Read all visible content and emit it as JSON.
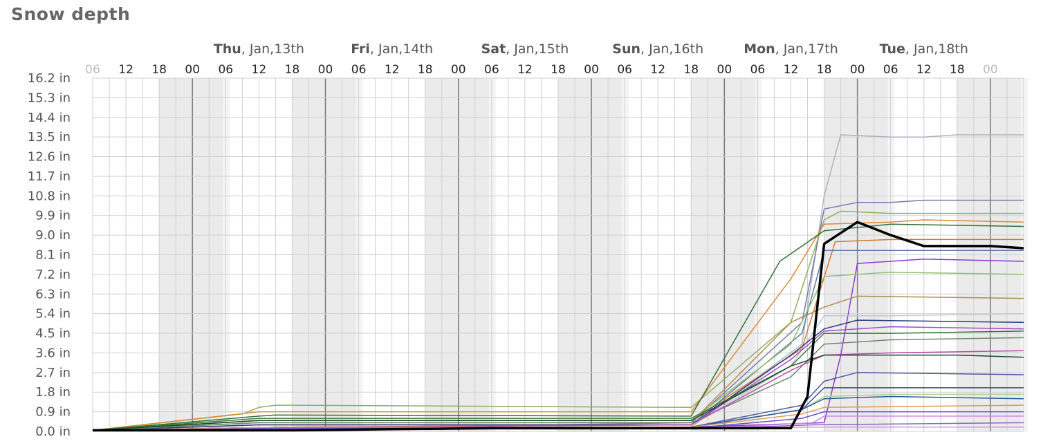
{
  "chart_data": {
    "type": "line",
    "title": "Snow depth",
    "xlabel": "",
    "ylabel": "",
    "unit": "in",
    "ylim": [
      0,
      16.2
    ],
    "y_ticks": [
      "0.0 in",
      "0.9 in",
      "1.8 in",
      "2.7 in",
      "3.6 in",
      "4.5 in",
      "5.4 in",
      "6.3 in",
      "7.2 in",
      "8.1 in",
      "9.0 in",
      "9.9 in",
      "10.8 in",
      "11.7 in",
      "12.6 in",
      "13.5 in",
      "14.4 in",
      "15.3 in",
      "16.2 in"
    ],
    "x_ticks": [
      "06",
      "12",
      "18",
      "00",
      "06",
      "12",
      "18",
      "00",
      "06",
      "12",
      "18",
      "00",
      "06",
      "12",
      "18",
      "00",
      "06",
      "12",
      "18",
      "00",
      "06",
      "12",
      "18",
      "00",
      "06",
      "12",
      "18",
      "00"
    ],
    "day_labels": [
      {
        "day": "Thu",
        "date": ", Jan,13th"
      },
      {
        "day": "Fri",
        "date": ", Jan,14th"
      },
      {
        "day": "Sat",
        "date": ", Jan,15th"
      },
      {
        "day": "Sun",
        "date": ", Jan,16th"
      },
      {
        "day": "Mon",
        "date": ", Jan,17th"
      },
      {
        "day": "Tue",
        "date": ", Jan,18th"
      }
    ],
    "x_hours_from_start_note": "x values are forecast hours starting at Wed 06",
    "grid": true,
    "series": [
      {
        "color": "#000000",
        "width": 3.5,
        "x": [
          0,
          36,
          54,
          72,
          108,
          126,
          129,
          132,
          138,
          144,
          150,
          156,
          162,
          168
        ],
        "y": [
          0.05,
          0.05,
          0.1,
          0.15,
          0.15,
          0.15,
          1.6,
          8.6,
          9.6,
          9.0,
          8.5,
          8.5,
          8.5,
          8.4
        ]
      },
      {
        "color": "#a8b4c0",
        "width": 1.5,
        "x": [
          0,
          30,
          108,
          128,
          132,
          135,
          144,
          150,
          156,
          168
        ],
        "y": [
          0.05,
          0.1,
          0.2,
          4.0,
          10.8,
          13.6,
          13.5,
          13.5,
          13.6,
          13.6
        ]
      },
      {
        "color": "#7777aa",
        "width": 1.5,
        "x": [
          0,
          30,
          108,
          128,
          132,
          138,
          144,
          150,
          168
        ],
        "y": [
          0.05,
          0.1,
          0.4,
          5.0,
          10.2,
          10.5,
          10.5,
          10.6,
          10.6
        ]
      },
      {
        "color": "#88b060",
        "width": 1.5,
        "x": [
          0,
          27,
          30,
          33,
          36,
          108,
          126,
          132,
          135,
          144,
          168
        ],
        "y": [
          0.05,
          0.8,
          1.1,
          1.2,
          1.2,
          1.1,
          5.0,
          9.7,
          10.1,
          10.0,
          10.0
        ]
      },
      {
        "color": "#e08a30",
        "width": 1.5,
        "x": [
          0,
          30,
          108,
          126,
          132,
          144,
          150,
          168
        ],
        "y": [
          0.05,
          0.9,
          0.9,
          7.0,
          9.5,
          9.6,
          9.7,
          9.6
        ]
      },
      {
        "color": "#2f6f3a",
        "width": 1.5,
        "x": [
          0,
          30,
          33,
          108,
          124,
          132,
          144,
          168
        ],
        "y": [
          0.05,
          0.7,
          0.75,
          0.7,
          7.8,
          9.2,
          9.5,
          9.4
        ]
      },
      {
        "color": "#d07a30",
        "width": 1.5,
        "x": [
          0,
          30,
          108,
          128,
          134,
          144,
          168
        ],
        "y": [
          0.05,
          0.5,
          0.5,
          3.8,
          8.7,
          8.8,
          8.8
        ]
      },
      {
        "color": "#5a7aaa",
        "width": 1.5,
        "x": [
          0,
          30,
          108,
          128,
          132,
          144,
          168
        ],
        "y": [
          0.05,
          0.3,
          0.3,
          4.5,
          8.3,
          8.3,
          8.3
        ]
      },
      {
        "color": "#8a3ad0",
        "width": 1.5,
        "x": [
          0,
          36,
          108,
          132,
          135,
          138,
          150,
          168
        ],
        "y": [
          0.05,
          0.2,
          0.2,
          0.4,
          3.5,
          7.7,
          7.9,
          7.8
        ]
      },
      {
        "color": "#90c070",
        "width": 1.5,
        "x": [
          0,
          30,
          108,
          126,
          132,
          144,
          168
        ],
        "y": [
          0.05,
          0.5,
          0.5,
          4.0,
          7.1,
          7.3,
          7.2
        ]
      },
      {
        "color": "#b08a50",
        "width": 1.5,
        "x": [
          0,
          30,
          108,
          126,
          132,
          138,
          168
        ],
        "y": [
          0.05,
          0.4,
          0.4,
          5.0,
          5.7,
          6.2,
          6.1
        ]
      },
      {
        "color": "#c0c8d0",
        "width": 1.5,
        "x": [
          0,
          30,
          108,
          126,
          132,
          144,
          168
        ],
        "y": [
          0.05,
          0.3,
          0.3,
          3.0,
          5.3,
          5.3,
          5.4
        ]
      },
      {
        "color": "#2a3a7a",
        "width": 1.5,
        "x": [
          0,
          30,
          108,
          126,
          132,
          138,
          168
        ],
        "y": [
          0.05,
          0.3,
          0.3,
          3.5,
          4.7,
          5.1,
          5.0
        ]
      },
      {
        "color": "#a04ad0",
        "width": 1.5,
        "x": [
          0,
          36,
          108,
          126,
          132,
          144,
          168
        ],
        "y": [
          0.05,
          0.2,
          0.3,
          3.3,
          4.6,
          4.8,
          4.7
        ]
      },
      {
        "color": "#3a7a3a",
        "width": 1.5,
        "x": [
          0,
          30,
          108,
          126,
          132,
          144,
          168
        ],
        "y": [
          0.05,
          0.6,
          0.6,
          3.0,
          4.5,
          4.5,
          4.6
        ]
      },
      {
        "color": "#6a8a6a",
        "width": 1.5,
        "x": [
          0,
          30,
          108,
          126,
          132,
          144,
          168
        ],
        "y": [
          0.05,
          0.4,
          0.4,
          2.5,
          4.0,
          4.2,
          4.3
        ]
      },
      {
        "color": "#c04ab0",
        "width": 1.5,
        "x": [
          0,
          36,
          108,
          126,
          132,
          144,
          168
        ],
        "y": [
          0.05,
          0.2,
          0.3,
          2.8,
          3.5,
          3.6,
          3.7
        ]
      },
      {
        "color": "#1a4a2a",
        "width": 1.5,
        "x": [
          0,
          30,
          108,
          126,
          132,
          144,
          156,
          168
        ],
        "y": [
          0.05,
          0.5,
          0.5,
          3.0,
          3.5,
          3.5,
          3.5,
          3.4
        ]
      },
      {
        "color": "#4a5aa0",
        "width": 1.5,
        "x": [
          0,
          36,
          108,
          128,
          132,
          138,
          168
        ],
        "y": [
          0.05,
          0.2,
          0.2,
          1.2,
          2.3,
          2.7,
          2.6
        ]
      },
      {
        "color": "#3a4a8a",
        "width": 1.5,
        "x": [
          0,
          36,
          108,
          128,
          132,
          144,
          168
        ],
        "y": [
          0.05,
          0.2,
          0.2,
          1.0,
          2.0,
          2.0,
          2.0
        ]
      },
      {
        "color": "#b0d090",
        "width": 1.5,
        "x": [
          0,
          36,
          108,
          128,
          132,
          144,
          168
        ],
        "y": [
          0.05,
          0.2,
          0.2,
          1.0,
          1.6,
          1.7,
          1.7
        ]
      },
      {
        "color": "#2a5a9a",
        "width": 1.5,
        "x": [
          0,
          36,
          108,
          128,
          132,
          144,
          168
        ],
        "y": [
          0.05,
          0.2,
          0.2,
          1.0,
          1.5,
          1.6,
          1.5
        ]
      },
      {
        "color": "#e09a50",
        "width": 1.5,
        "x": [
          0,
          36,
          108,
          128,
          132,
          168
        ],
        "y": [
          0.05,
          0.2,
          0.2,
          0.8,
          1.1,
          1.2
        ]
      },
      {
        "color": "#6a4ad0",
        "width": 1.5,
        "x": [
          0,
          36,
          108,
          128,
          132,
          168
        ],
        "y": [
          0.05,
          0.15,
          0.15,
          0.6,
          0.9,
          0.9
        ]
      },
      {
        "color": "#d080e0",
        "width": 1.5,
        "x": [
          0,
          36,
          108,
          130,
          132,
          168
        ],
        "y": [
          0.05,
          0.1,
          0.1,
          0.4,
          0.7,
          0.7
        ]
      },
      {
        "color": "#9a60c0",
        "width": 1.5,
        "x": [
          0,
          36,
          108,
          130,
          168
        ],
        "y": [
          0.05,
          0.1,
          0.1,
          0.3,
          0.4
        ]
      },
      {
        "color": "#c0a0e0",
        "width": 1.5,
        "x": [
          0,
          36,
          108,
          130,
          168
        ],
        "y": [
          0.05,
          0.1,
          0.1,
          0.2,
          0.2
        ]
      }
    ]
  }
}
